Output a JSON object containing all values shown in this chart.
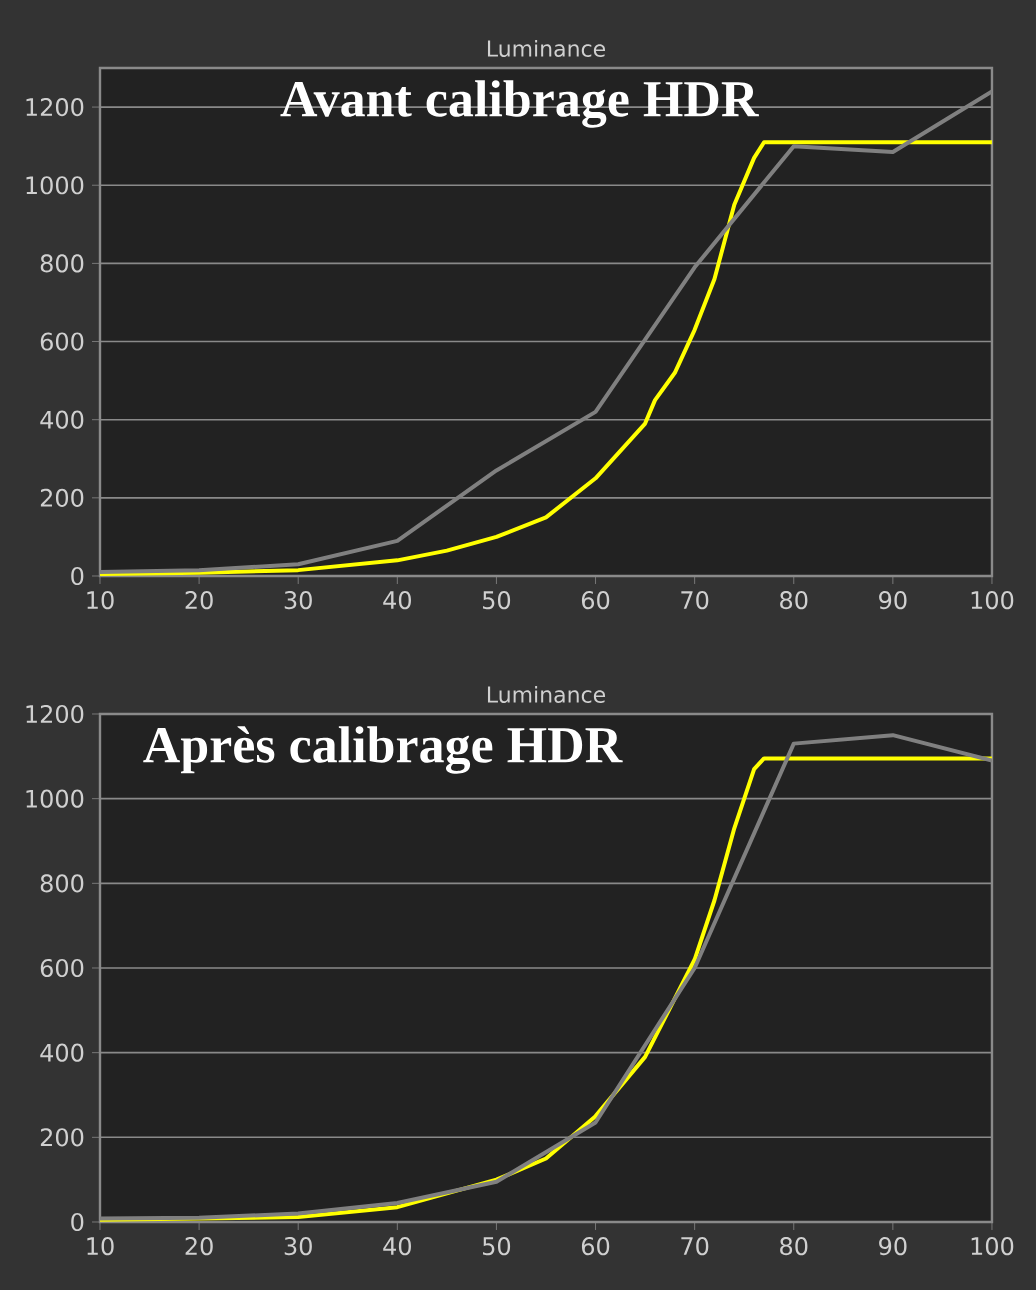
{
  "chart_data": [
    {
      "type": "line",
      "title": "Luminance",
      "annotations": [
        "Avant calibrage HDR"
      ],
      "xlim": [
        10,
        100
      ],
      "ylim": [
        0,
        1300
      ],
      "xticks": [
        10,
        20,
        30,
        40,
        50,
        60,
        70,
        80,
        90,
        100
      ],
      "yticks": [
        0,
        200,
        400,
        600,
        800,
        1000,
        1200
      ],
      "grid": "y",
      "legend": false,
      "marker": "none",
      "line_style": "solid",
      "series": [
        {
          "color": "#ffff00",
          "x": [
            10,
            20,
            30,
            40,
            45,
            50,
            55,
            60,
            65,
            66,
            68,
            70,
            72,
            74,
            76,
            77,
            100
          ],
          "values": [
            5,
            8,
            15,
            40,
            65,
            100,
            150,
            250,
            390,
            450,
            520,
            630,
            760,
            950,
            1070,
            1110,
            1110
          ]
        },
        {
          "color": "#808080",
          "x": [
            10,
            20,
            30,
            40,
            50,
            60,
            70,
            80,
            90,
            100
          ],
          "values": [
            10,
            15,
            30,
            90,
            270,
            420,
            790,
            1100,
            1085,
            1240
          ]
        }
      ]
    },
    {
      "type": "line",
      "title": "Luminance",
      "annotations": [
        "Après calibrage HDR"
      ],
      "xlim": [
        10,
        100
      ],
      "ylim": [
        0,
        1200
      ],
      "xticks": [
        10,
        20,
        30,
        40,
        50,
        60,
        70,
        80,
        90,
        100
      ],
      "yticks": [
        0,
        200,
        400,
        600,
        800,
        1000,
        1200
      ],
      "grid": "y",
      "legend": false,
      "marker": "none",
      "line_style": "solid",
      "series": [
        {
          "color": "#ffff00",
          "x": [
            10,
            20,
            30,
            40,
            50,
            55,
            60,
            65,
            70,
            72,
            74,
            76,
            77,
            100
          ],
          "values": [
            5,
            8,
            12,
            35,
            100,
            150,
            250,
            390,
            620,
            760,
            930,
            1070,
            1095,
            1095
          ]
        },
        {
          "color": "#808080",
          "x": [
            10,
            20,
            30,
            40,
            50,
            60,
            70,
            80,
            90,
            100
          ],
          "values": [
            8,
            10,
            20,
            45,
            95,
            235,
            600,
            1130,
            1150,
            1090
          ]
        }
      ]
    }
  ]
}
